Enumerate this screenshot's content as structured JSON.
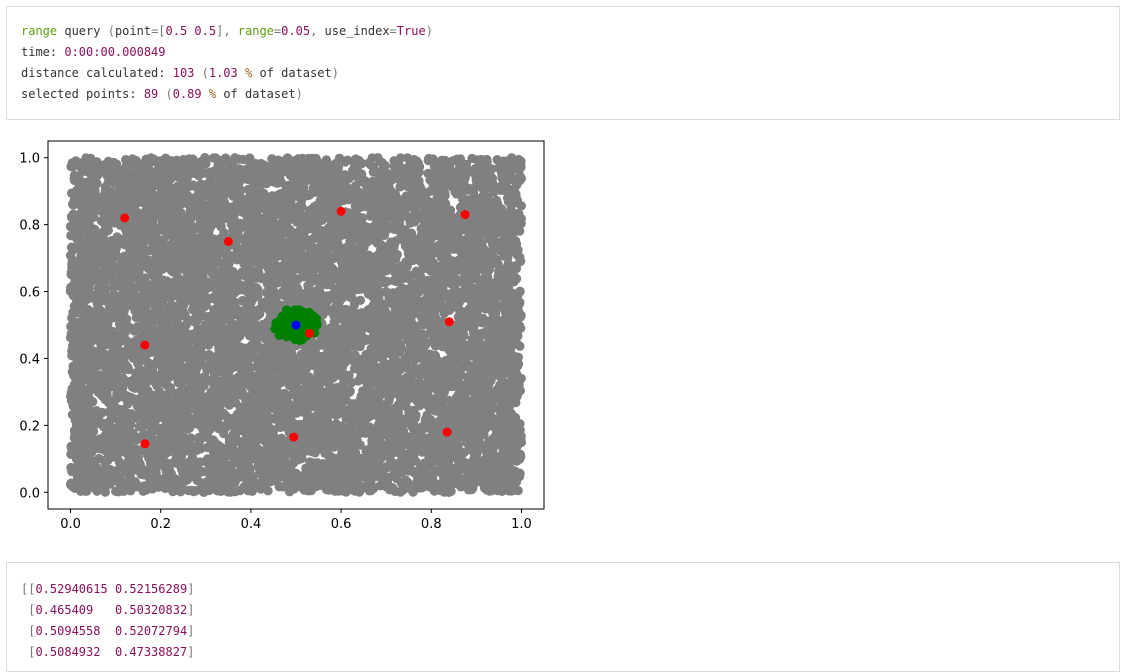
{
  "log": {
    "line1": {
      "func": "range",
      "word": " query ",
      "open": "(",
      "point_key": "point",
      "eq1": "=",
      "point_open": "[",
      "point_val": "0.5 0.5",
      "point_close": "],",
      "range_key": " range",
      "eq2": "=",
      "range_val": "0.05",
      "comma": ", ",
      "idx_key": "use_index",
      "eq3": "=",
      "idx_val": "True",
      "close": ")"
    },
    "line2": {
      "label": "time: ",
      "value": "0:00:00.000849"
    },
    "line3": {
      "label": "distance calculated: ",
      "count": "103",
      "open": " (",
      "pct": "1.03",
      "pct_sign": " %",
      "tail": " of dataset",
      "close": ")"
    },
    "line4": {
      "label": "selected points: ",
      "count": "89",
      "open": " (",
      "pct": "0.89",
      "pct_sign": " %",
      "tail": " of dataset",
      "close": ")"
    }
  },
  "chart_data": {
    "type": "scatter",
    "title": "",
    "xlabel": "",
    "ylabel": "",
    "xlim": [
      -0.05,
      1.05
    ],
    "ylim": [
      -0.05,
      1.05
    ],
    "x_ticks": [
      "0.0",
      "0.2",
      "0.4",
      "0.6",
      "0.8",
      "1.0"
    ],
    "y_ticks": [
      "0.0",
      "0.2",
      "0.4",
      "0.6",
      "0.8",
      "1.0"
    ],
    "grid": false,
    "series": [
      {
        "role": "dataset",
        "color": "#808080",
        "count": 10000,
        "x_range": [
          0,
          1
        ],
        "y_range": [
          0,
          1
        ]
      },
      {
        "role": "selected",
        "color": "#008000",
        "count": 89,
        "center": [
          0.5,
          0.5
        ],
        "radius": 0.05
      },
      {
        "role": "pivots",
        "color": "#ff0000",
        "points": [
          [
            0.12,
            0.82
          ],
          [
            0.35,
            0.75
          ],
          [
            0.6,
            0.84
          ],
          [
            0.875,
            0.83
          ],
          [
            0.84,
            0.51
          ],
          [
            0.165,
            0.44
          ],
          [
            0.53,
            0.475
          ],
          [
            0.165,
            0.145
          ],
          [
            0.495,
            0.165
          ],
          [
            0.835,
            0.18
          ]
        ]
      },
      {
        "role": "query",
        "color": "#0000ff",
        "points": [
          [
            0.5,
            0.5
          ]
        ]
      }
    ]
  },
  "result_array": {
    "rows": [
      {
        "open": "[[",
        "a": "0.52940615",
        "sep": " ",
        "b": "0.52156289",
        "close": "]"
      },
      {
        "open": " [",
        "a": "0.465409",
        "sep": "   ",
        "b": "0.50320832",
        "close": "]"
      },
      {
        "open": " [",
        "a": "0.5094558",
        "sep": "  ",
        "b": "0.52072794",
        "close": "]"
      },
      {
        "open": " [",
        "a": "0.5084932",
        "sep": "  ",
        "b": "0.47338827",
        "close": "]"
      }
    ]
  }
}
